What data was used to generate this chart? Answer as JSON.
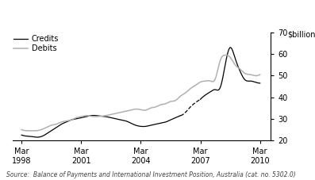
{
  "title": "",
  "ylabel_right": "$billion",
  "ylim": [
    20,
    70
  ],
  "yticks": [
    20,
    30,
    40,
    50,
    60,
    70
  ],
  "source_text": "Source:  Balance of Payments and International Investment Position, Australia (cat. no. 5302.0)",
  "legend_entries": [
    "Credits",
    "Debits"
  ],
  "credits_color": "#000000",
  "debits_color": "#b0b0b0",
  "background_color": "#ffffff",
  "xtick_positions": [
    1998.25,
    2001.25,
    2004.25,
    2007.25,
    2010.25
  ],
  "xlim": [
    1997.8,
    2010.8
  ],
  "credits_seg1_x": [
    1998.25,
    1998.5,
    1998.75,
    1999.0,
    1999.25,
    1999.5,
    1999.75,
    2000.0,
    2000.25,
    2000.5,
    2000.75,
    2001.0,
    2001.25,
    2001.5,
    2001.75,
    2002.0,
    2002.25,
    2002.5,
    2002.75,
    2003.0,
    2003.25,
    2003.5,
    2003.75,
    2004.0,
    2004.25,
    2004.5,
    2004.75,
    2005.0,
    2005.25,
    2005.5,
    2005.75,
    2006.0,
    2006.25
  ],
  "credits_seg1_y": [
    22.5,
    22.0,
    21.8,
    21.5,
    21.8,
    23.0,
    24.5,
    26.0,
    27.5,
    28.5,
    29.5,
    30.0,
    30.5,
    31.0,
    31.5,
    31.5,
    31.2,
    31.0,
    30.5,
    30.0,
    29.5,
    29.0,
    28.0,
    27.0,
    26.5,
    26.5,
    27.0,
    27.5,
    28.0,
    28.5,
    29.5,
    30.5,
    31.5
  ],
  "credits_dash_x": [
    2006.25,
    2006.5,
    2006.75,
    2007.0,
    2007.25
  ],
  "credits_dash_y": [
    31.5,
    33.0,
    35.5,
    37.5,
    39.0
  ],
  "credits_seg2_x": [
    2007.25,
    2007.5,
    2007.75,
    2008.0,
    2008.25,
    2008.5,
    2008.75,
    2009.0,
    2009.25,
    2009.5,
    2009.75,
    2010.0,
    2010.25
  ],
  "credits_seg2_y": [
    39.0,
    41.0,
    42.5,
    43.5,
    44.5,
    55.0,
    63.0,
    58.0,
    52.0,
    48.0,
    47.5,
    47.0,
    46.5
  ],
  "debits_x": [
    1998.25,
    1998.5,
    1998.75,
    1999.0,
    1999.25,
    1999.5,
    1999.75,
    2000.0,
    2000.25,
    2000.5,
    2000.75,
    2001.0,
    2001.25,
    2001.5,
    2001.75,
    2002.0,
    2002.25,
    2002.5,
    2002.75,
    2003.0,
    2003.25,
    2003.5,
    2003.75,
    2004.0,
    2004.25,
    2004.5,
    2004.75,
    2005.0,
    2005.25,
    2005.5,
    2005.75,
    2006.0,
    2006.25,
    2006.5,
    2006.75,
    2007.0,
    2007.25,
    2007.5,
    2007.75,
    2008.0,
    2008.25,
    2008.5,
    2008.75,
    2009.0,
    2009.25,
    2009.5,
    2009.75,
    2010.0,
    2010.25
  ],
  "debits_y": [
    25.0,
    24.5,
    24.5,
    24.5,
    25.0,
    26.0,
    27.0,
    27.5,
    28.5,
    29.0,
    29.5,
    30.5,
    31.0,
    31.5,
    31.2,
    31.0,
    31.2,
    31.5,
    32.0,
    32.5,
    33.0,
    33.5,
    34.0,
    34.5,
    34.2,
    34.0,
    35.0,
    35.5,
    36.5,
    37.0,
    38.0,
    38.5,
    40.5,
    42.0,
    44.0,
    45.5,
    47.0,
    47.5,
    47.5,
    48.5,
    57.0,
    59.5,
    58.5,
    55.0,
    53.0,
    51.0,
    50.5,
    50.0,
    50.5
  ]
}
